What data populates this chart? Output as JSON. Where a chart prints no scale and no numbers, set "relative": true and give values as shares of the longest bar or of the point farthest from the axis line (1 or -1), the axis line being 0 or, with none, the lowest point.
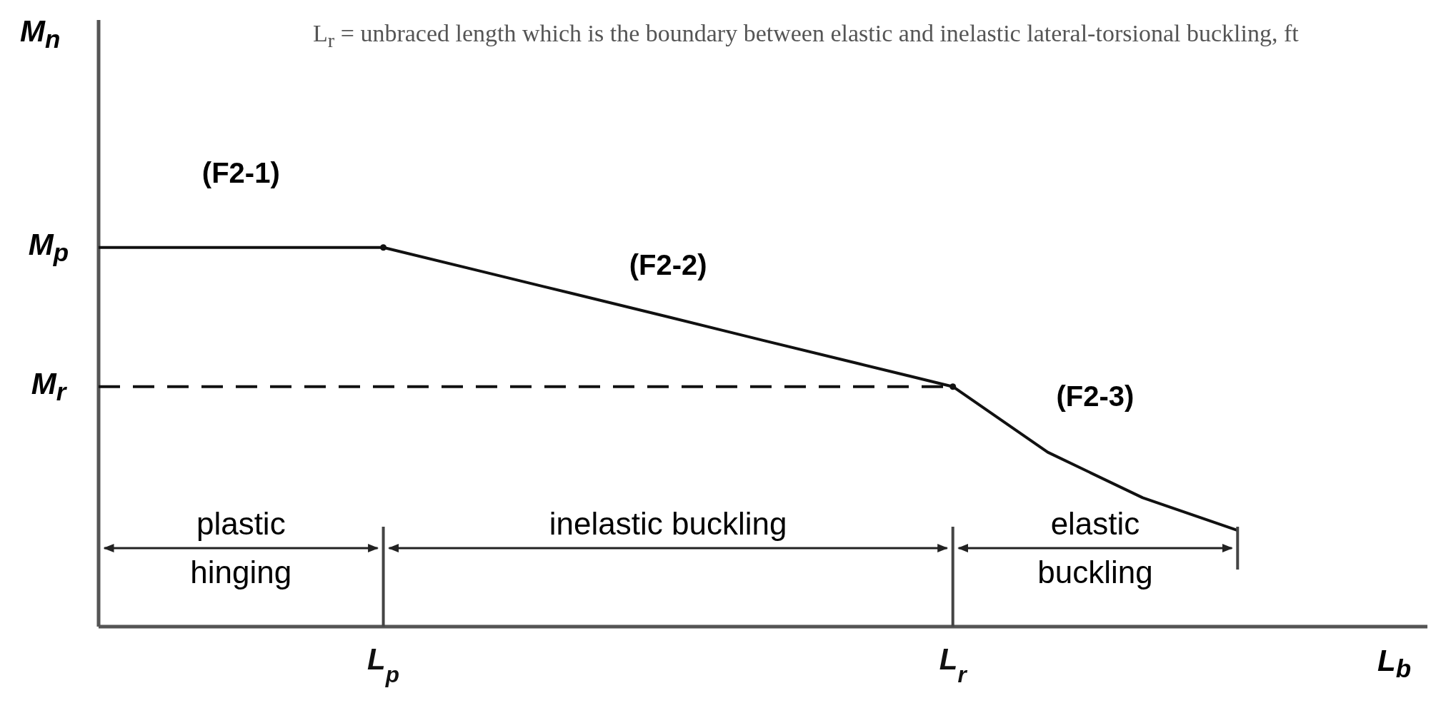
{
  "chart_data": {
    "type": "line",
    "relative": true,
    "xlabel": "L$_{b}$",
    "categories": [
      null,
      null,
      null,
      "L$_{p}$",
      null,
      null,
      null,
      null,
      null,
      "L$_{r}$",
      null,
      null,
      null,
      null,
      null
    ],
    "series": [
      {
        "type": "line",
        "color": "#111111",
        "values": [
          1,
          1,
          1,
          1,
          0.939,
          0.878,
          0.817,
          0.755,
          0.694,
          0.633,
          0.46,
          0.34,
          0.254,
          null,
          null
        ]
      },
      {
        "type": "line",
        "color": "#111111",
        "line_style": "dashed",
        "values": [
          0.633,
          0.633,
          0.633,
          0.633,
          0.633,
          0.633,
          0.633,
          0.633,
          0.633,
          0.633,
          null,
          null,
          null,
          null,
          null
        ]
      },
      {
        "type": "scatter",
        "color": "#111111",
        "marker": "circle",
        "values": [
          null,
          null,
          null,
          1,
          null,
          null,
          null,
          null,
          null,
          0.633,
          null,
          null,
          null,
          null,
          null
        ]
      }
    ],
    "annotations": [
      "L$_{r}$ = unbraced length which is the boundary between elastic and inelastic lateral-torsional buckling, ft",
      "plastic\nhinging",
      "inelastic buckling",
      "elastic\nbuckling",
      "(F2-1)",
      "(F2-2)",
      "(F2-3)",
      "M$_{p}$",
      "M$_{r}$",
      "M$_{n}$"
    ]
  }
}
